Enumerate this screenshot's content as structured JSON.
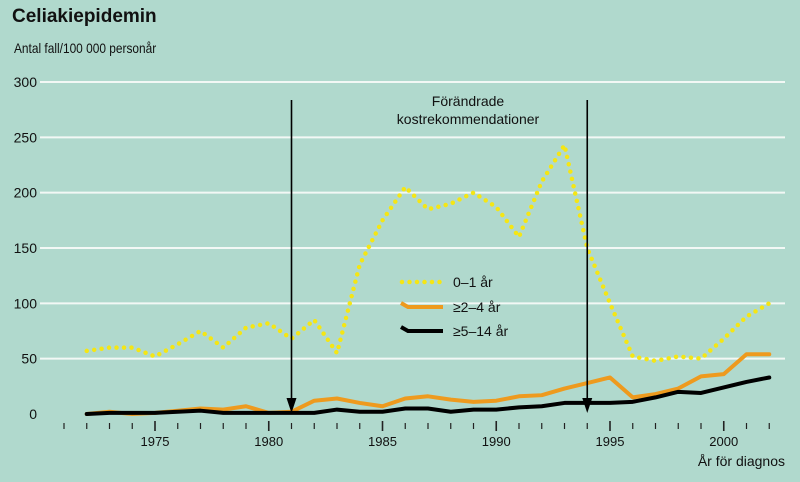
{
  "chart_data": {
    "type": "line",
    "title": "Celiakiepidemin",
    "ylabel": "Antal fall/100 000 personår",
    "xlabel": "År för diagnos",
    "ylim": [
      0,
      300
    ],
    "xlim": [
      1972,
      2002
    ],
    "yticks": [
      0,
      50,
      100,
      150,
      200,
      250,
      300
    ],
    "xticks": [
      1975,
      1980,
      1985,
      1990,
      1995,
      2000
    ],
    "grid": true,
    "legend_position": "center-left",
    "annotation": {
      "line1": "Förändrade",
      "line2": "kostrekommendationer",
      "arrow_years": [
        1981,
        1994
      ]
    },
    "x": [
      1972,
      1973,
      1974,
      1975,
      1976,
      1977,
      1978,
      1979,
      1980,
      1981,
      1982,
      1983,
      1984,
      1985,
      1986,
      1987,
      1988,
      1989,
      1990,
      1991,
      1992,
      1993,
      1994,
      1995,
      1996,
      1997,
      1998,
      1999,
      2000,
      2001,
      2002
    ],
    "series": [
      {
        "name": "0–1 år",
        "color": "#f5e614",
        "style": "dotted",
        "values": [
          57,
          60,
          60,
          52,
          63,
          75,
          60,
          78,
          82,
          68,
          85,
          55,
          135,
          175,
          205,
          185,
          190,
          200,
          187,
          160,
          210,
          243,
          150,
          100,
          52,
          48,
          52,
          50,
          68,
          88,
          100
        ]
      },
      {
        "name": "≥2–4 år",
        "color": "#ee9a1e",
        "style": "solid",
        "values": [
          0,
          2,
          0,
          1,
          3,
          5,
          4,
          7,
          1,
          2,
          12,
          14,
          10,
          7,
          14,
          16,
          13,
          11,
          12,
          16,
          17,
          23,
          28,
          33,
          15,
          18,
          23,
          34,
          36,
          54,
          54
        ]
      },
      {
        "name": "≥5–14 år",
        "color": "#000000",
        "style": "solid",
        "values": [
          0,
          1,
          1,
          1,
          2,
          3,
          1,
          1,
          1,
          1,
          1,
          4,
          2,
          2,
          5,
          5,
          2,
          4,
          4,
          6,
          7,
          10,
          10,
          10,
          11,
          15,
          20,
          19,
          24,
          29,
          33
        ]
      }
    ]
  }
}
